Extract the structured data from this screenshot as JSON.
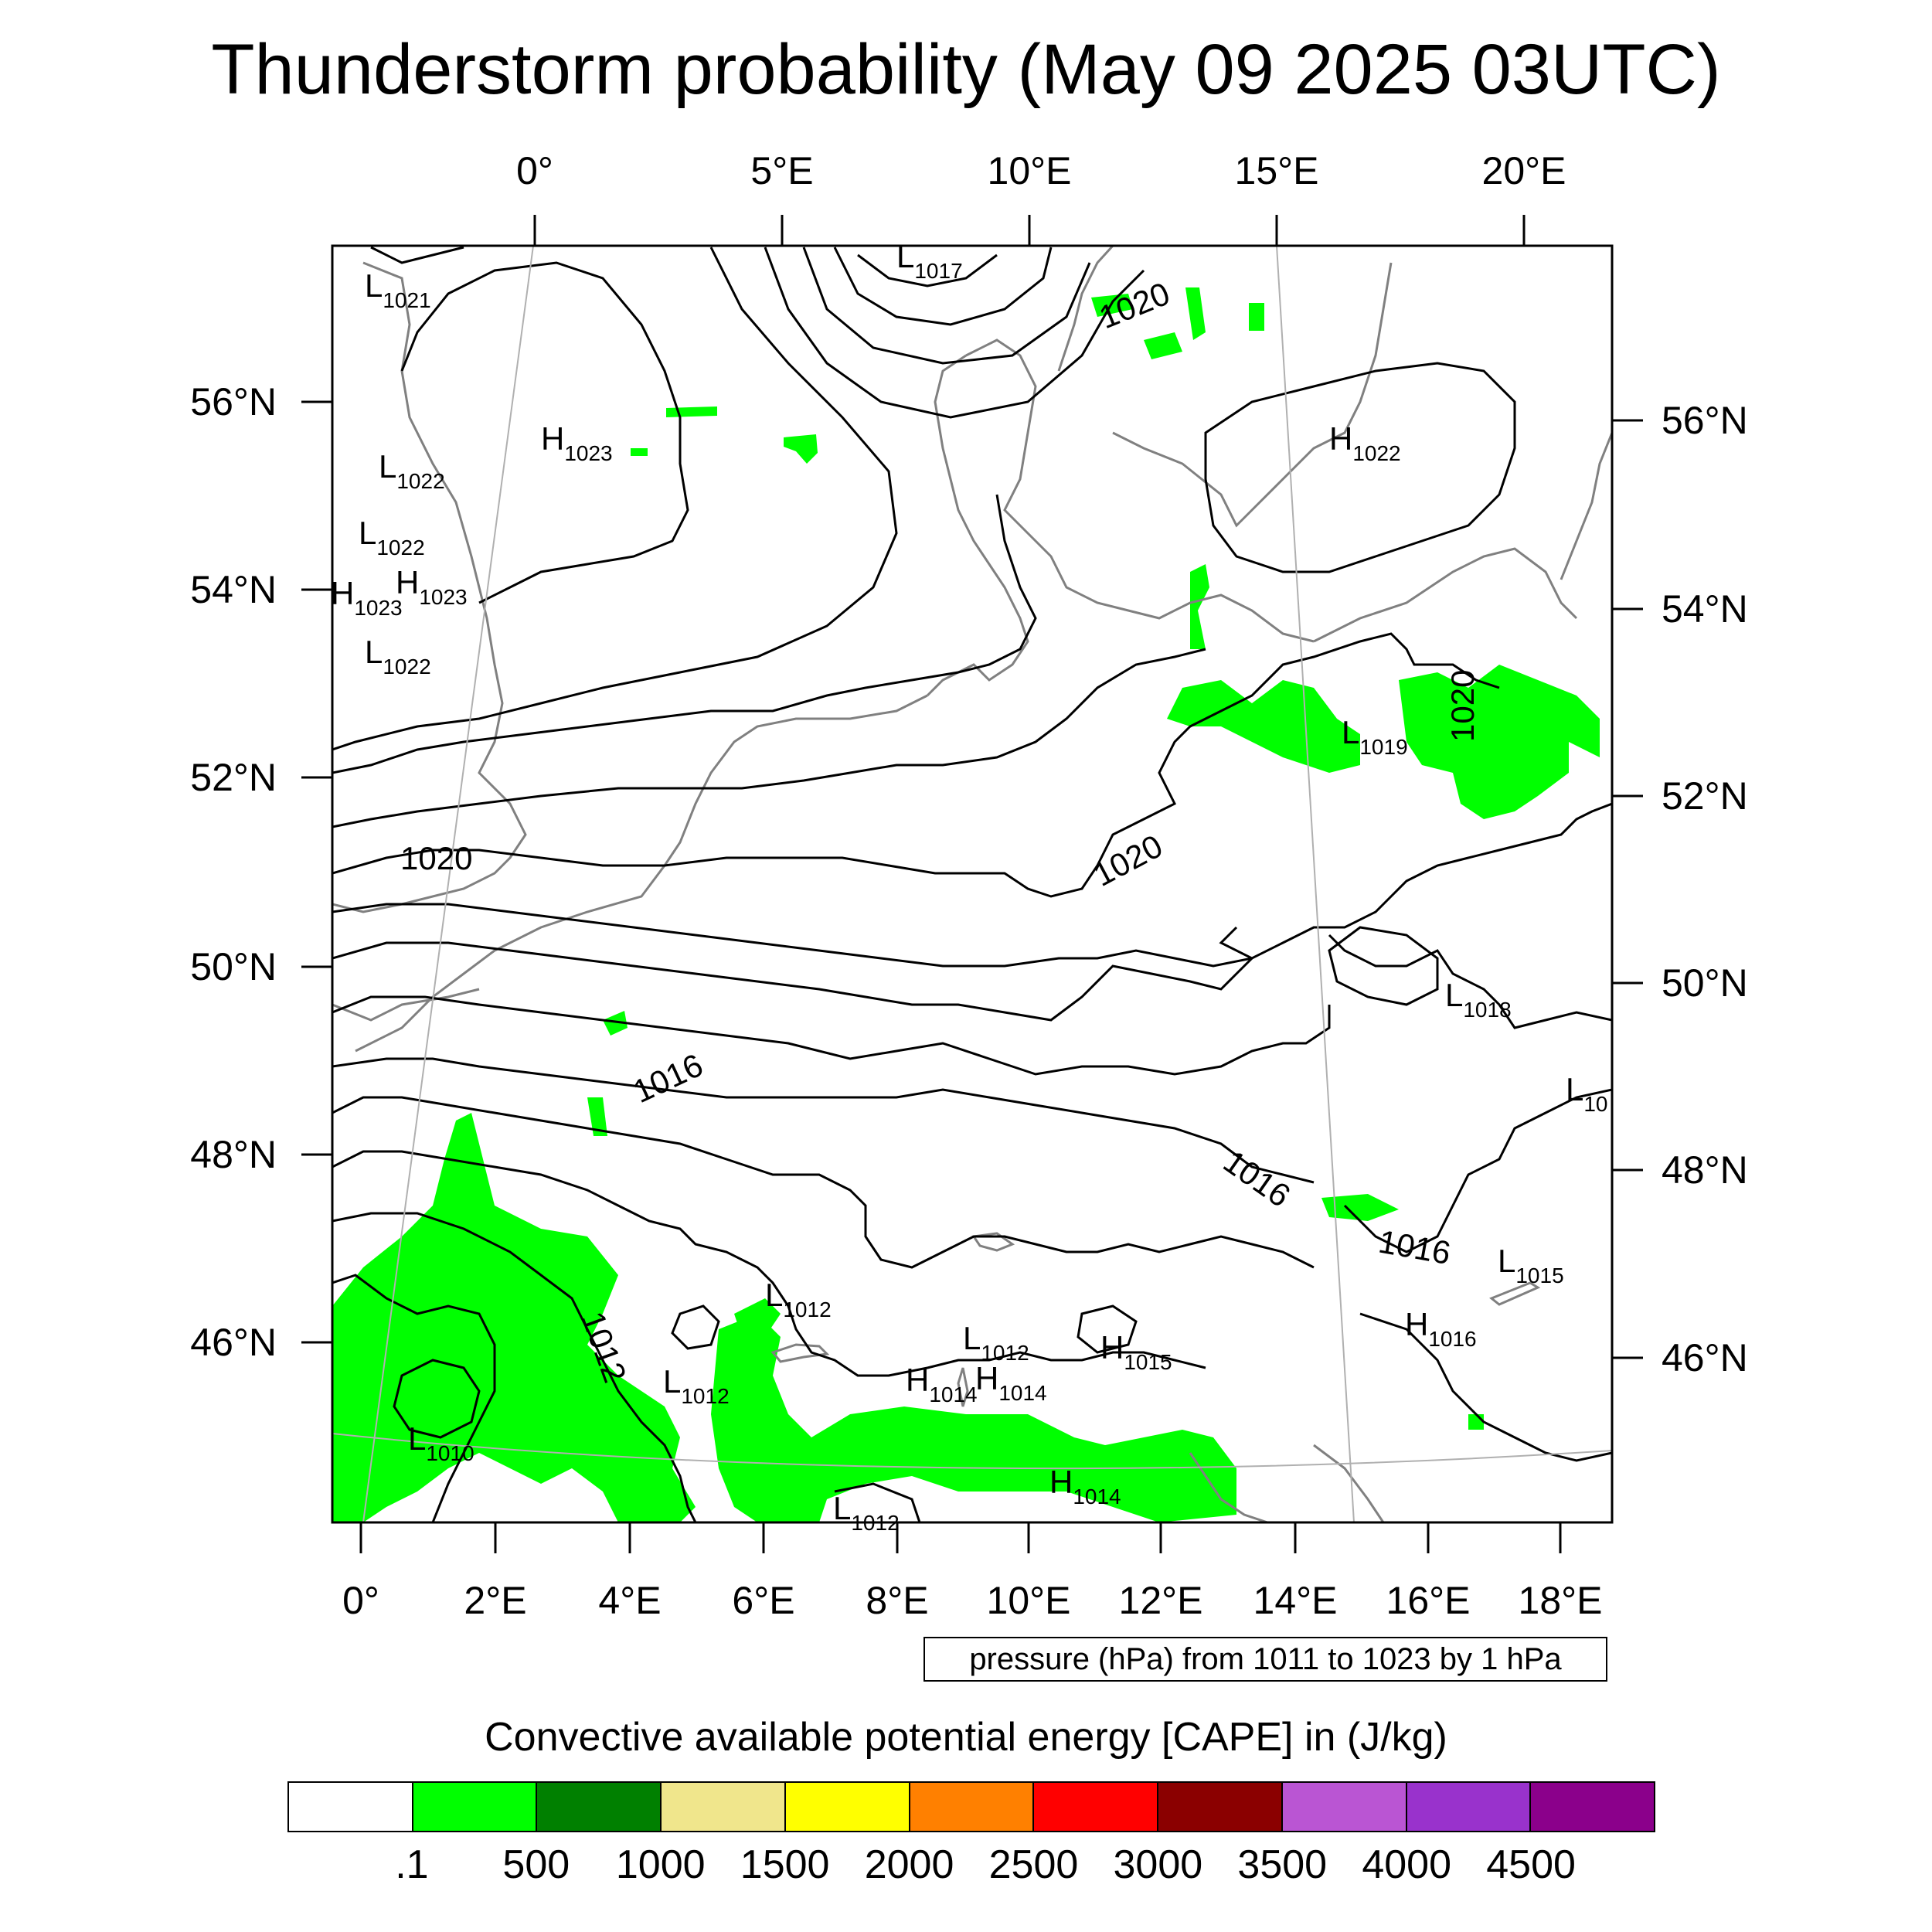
{
  "title": "Thunderstorm probability (May 09 2025 03UTC)",
  "axes": {
    "top": [
      "0°",
      "5°E",
      "10°E",
      "15°E",
      "20°E"
    ],
    "bottom": [
      "0°",
      "2°E",
      "4°E",
      "6°E",
      "8°E",
      "10°E",
      "12°E",
      "14°E",
      "16°E",
      "18°E"
    ],
    "left": [
      "56°N",
      "54°N",
      "52°N",
      "50°N",
      "48°N",
      "46°N"
    ],
    "right": [
      "56°N",
      "54°N",
      "52°N",
      "50°N",
      "48°N",
      "46°N"
    ]
  },
  "isobar_labels": [
    "1020",
    "1020",
    "1020",
    "1020",
    "1016",
    "1016",
    "1016",
    "1012"
  ],
  "pressure_centers": [
    {
      "type": "L",
      "value": "1017"
    },
    {
      "type": "L",
      "value": "1021"
    },
    {
      "type": "H",
      "value": "1023"
    },
    {
      "type": "L",
      "value": "1022"
    },
    {
      "type": "L",
      "value": "1022"
    },
    {
      "type": "H",
      "value": "1023"
    },
    {
      "type": "H",
      "value": "1023"
    },
    {
      "type": "L",
      "value": "1022"
    },
    {
      "type": "H",
      "value": "1022"
    },
    {
      "type": "L",
      "value": "1019"
    },
    {
      "type": "L",
      "value": "1018"
    },
    {
      "type": "L",
      "value": "10"
    },
    {
      "type": "L",
      "value": "1015"
    },
    {
      "type": "H",
      "value": "1016"
    },
    {
      "type": "L",
      "value": "1012"
    },
    {
      "type": "L",
      "value": "1012"
    },
    {
      "type": "L",
      "value": "1012"
    },
    {
      "type": "H",
      "value": "1015"
    },
    {
      "type": "H",
      "value": "1014"
    },
    {
      "type": "H",
      "value": "1014"
    },
    {
      "type": "L",
      "value": "1010"
    },
    {
      "type": "H",
      "value": "1014"
    },
    {
      "type": "L",
      "value": "1012"
    }
  ],
  "contour_info": "pressure (hPa) from 1011 to 1023 by 1 hPa",
  "colorbar": {
    "title": "Convective available potential energy [CAPE] in (J/kg)",
    "colors": [
      "#ffffff",
      "#00ff00",
      "#008000",
      "#f0e68c",
      "#ffff00",
      "#ff8000",
      "#ff0000",
      "#8b0000",
      "#ba55d3",
      "#9932cc",
      "#8b008b"
    ],
    "labels": [
      ".1",
      "500",
      "1000",
      "1500",
      "2000",
      "2500",
      "3000",
      "3500",
      "4000",
      "4500"
    ]
  }
}
